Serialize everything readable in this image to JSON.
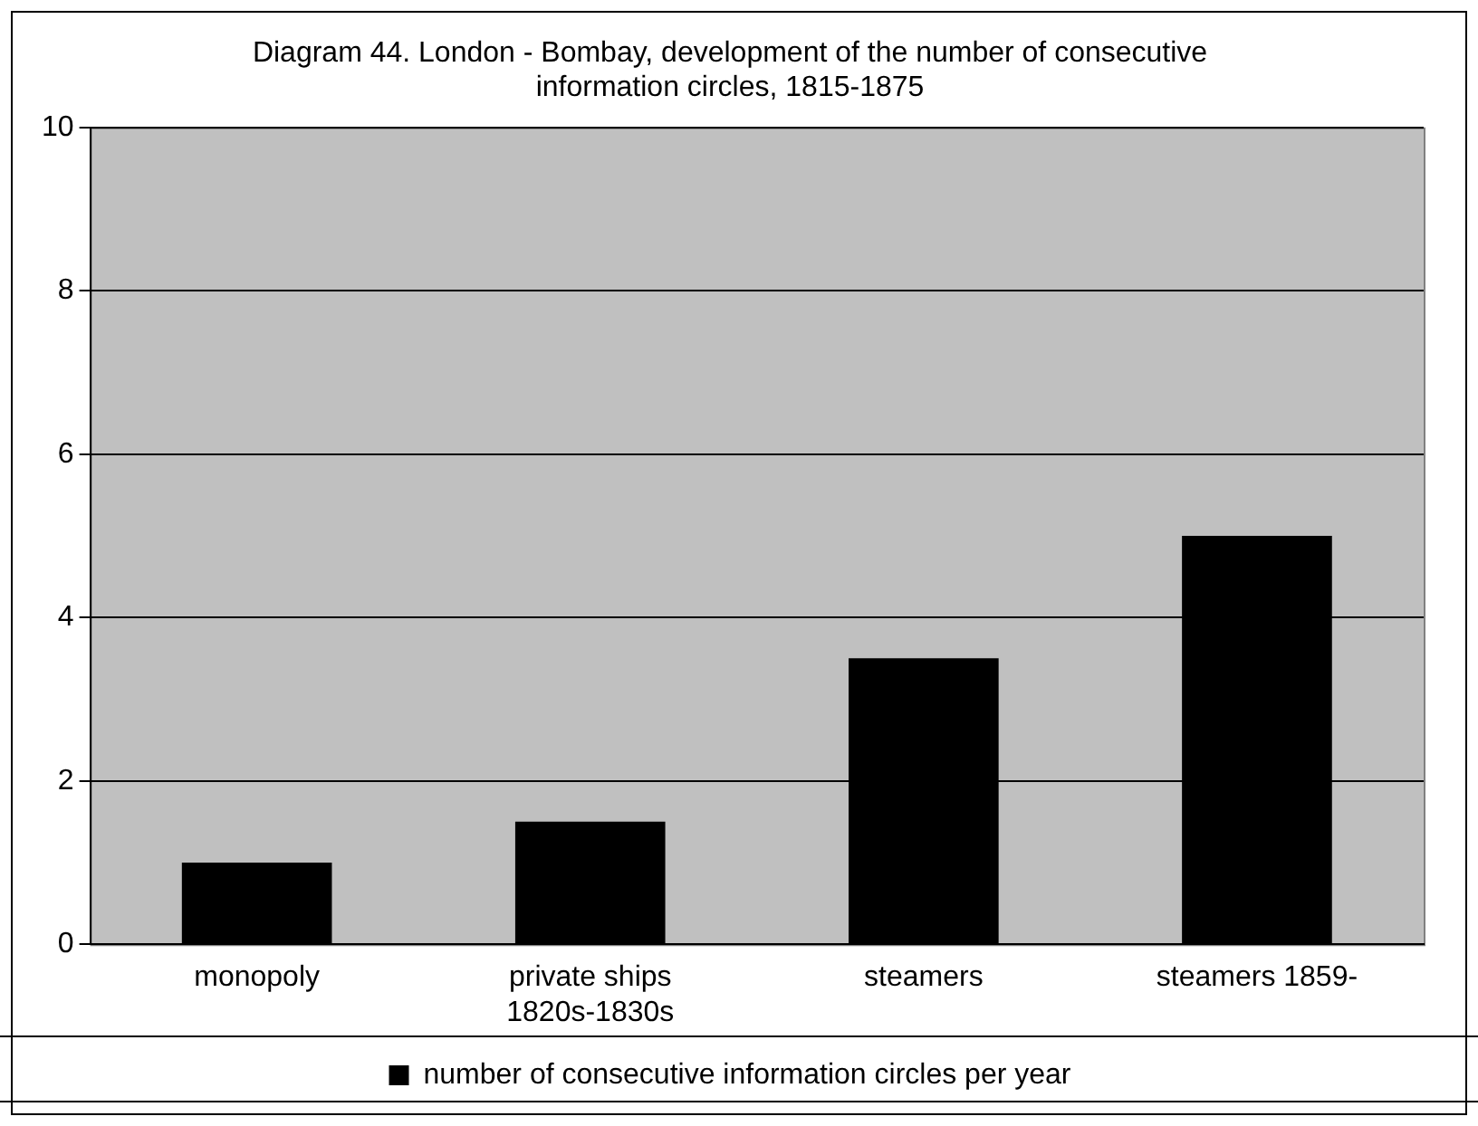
{
  "chart_data": {
    "type": "bar",
    "title": "Diagram 44. London - Bombay, development of the number of consecutive information circles, 1815-1875",
    "categories": [
      "monopoly",
      "private ships 1820s-1830s",
      "steamers",
      "steamers 1859-"
    ],
    "series": [
      {
        "name": "number of consecutive information circles per year",
        "color": "#000000",
        "values": [
          1,
          1.5,
          3.5,
          5
        ]
      }
    ],
    "ylim": [
      0,
      10
    ],
    "yticks": [
      0,
      2,
      4,
      6,
      8,
      10
    ],
    "grid": "y",
    "legend": "bottom"
  }
}
